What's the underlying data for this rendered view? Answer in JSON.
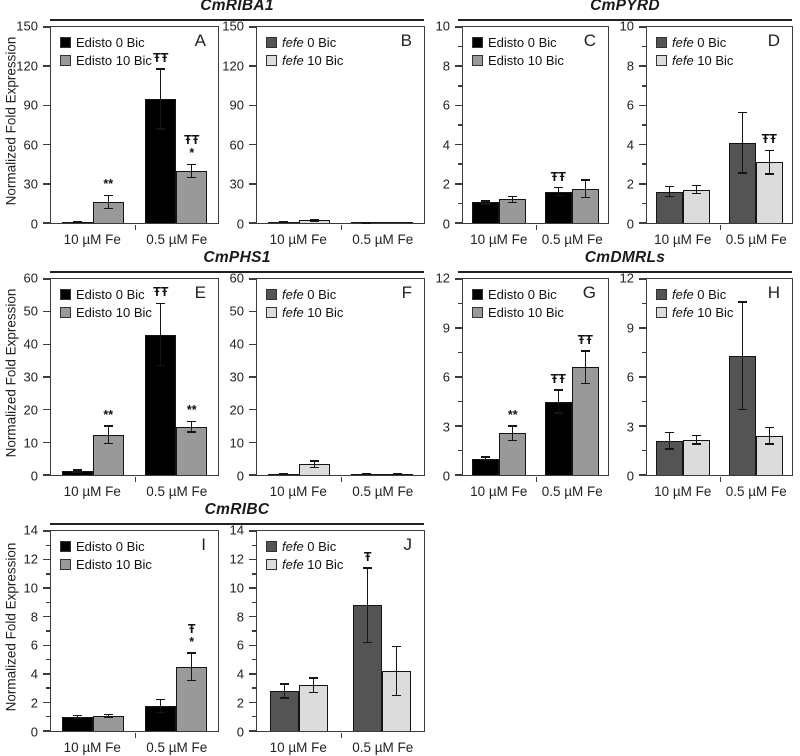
{
  "figure": {
    "ylabel": "Normalized Fold Expression",
    "background": "#ffffff"
  },
  "groups": [
    {
      "title": "CmRIBA1"
    },
    {
      "title": "CmPYRD"
    },
    {
      "title": "CmPHS1"
    },
    {
      "title": "CmDMRLs"
    },
    {
      "title": "CmRIBC"
    }
  ],
  "colors": {
    "edisto_0bic": "#000000",
    "edisto_10bic": "#999999",
    "fefe_0bic": "#545454",
    "fefe_10bic": "#dcdcdc",
    "axis": "#3c3c3c"
  },
  "chart_data": [
    {
      "type": "bar",
      "panel": "A",
      "title": "CmRIBA1",
      "variety": "Edisto",
      "italic_legend": false,
      "categories": [
        "10 µM Fe",
        "0.5 µM Fe"
      ],
      "ylim": [
        0,
        150
      ],
      "yticks": [
        0,
        30,
        60,
        90,
        120,
        150
      ],
      "minor_ticks": false,
      "series": [
        {
          "name": "Edisto 0 Bic",
          "color": "#000000",
          "values": [
            1,
            95
          ],
          "errors": [
            0.3,
            23
          ],
          "annotations": [
            [],
            [
              "ŦŦ"
            ]
          ]
        },
        {
          "name": "Edisto 10 Bic",
          "color": "#999999",
          "values": [
            16,
            40
          ],
          "errors": [
            5,
            5
          ],
          "annotations": [
            [
              "**"
            ],
            [
              "ŦŦ",
              "*"
            ]
          ]
        }
      ]
    },
    {
      "type": "bar",
      "panel": "B",
      "title": "CmRIBA1",
      "variety": "fefe",
      "italic_legend": true,
      "categories": [
        "10 µM Fe",
        "0.5 µM Fe"
      ],
      "ylim": [
        0,
        150
      ],
      "yticks": [
        0,
        30,
        60,
        90,
        120,
        150
      ],
      "minor_ticks": false,
      "series": [
        {
          "name": "fefe 0 Bic",
          "color": "#545454",
          "values": [
            0.7,
            0.2
          ],
          "errors": [
            0.2,
            0.1
          ],
          "annotations": [
            [],
            []
          ]
        },
        {
          "name": "fefe 10 Bic",
          "color": "#dcdcdc",
          "values": [
            2,
            0.3
          ],
          "errors": [
            0.6,
            0.15
          ],
          "annotations": [
            [],
            []
          ]
        }
      ]
    },
    {
      "type": "bar",
      "panel": "C",
      "title": "CmPYRD",
      "variety": "Edisto",
      "italic_legend": false,
      "categories": [
        "10 µM Fe",
        "0.5 µM Fe"
      ],
      "ylim": [
        0,
        10
      ],
      "yticks": [
        0,
        2,
        4,
        6,
        8,
        10
      ],
      "minor_ticks": true,
      "series": [
        {
          "name": "Edisto 0 Bic",
          "color": "#000000",
          "values": [
            1.05,
            1.6
          ],
          "errors": [
            0.08,
            0.2
          ],
          "annotations": [
            [],
            [
              "ŦŦ"
            ]
          ]
        },
        {
          "name": "Edisto 10 Bic",
          "color": "#999999",
          "values": [
            1.2,
            1.75
          ],
          "errors": [
            0.15,
            0.45
          ],
          "annotations": [
            [],
            []
          ]
        }
      ]
    },
    {
      "type": "bar",
      "panel": "D",
      "title": "CmPYRD",
      "variety": "fefe",
      "italic_legend": true,
      "categories": [
        "10 µM Fe",
        "0.5 µM Fe"
      ],
      "ylim": [
        0,
        10
      ],
      "yticks": [
        0,
        2,
        4,
        6,
        8,
        10
      ],
      "minor_ticks": true,
      "series": [
        {
          "name": "fefe 0 Bic",
          "color": "#545454",
          "values": [
            1.6,
            4.1
          ],
          "errors": [
            0.25,
            1.55
          ],
          "annotations": [
            [],
            []
          ]
        },
        {
          "name": "fefe 10 Bic",
          "color": "#dcdcdc",
          "values": [
            1.7,
            3.1
          ],
          "errors": [
            0.2,
            0.6
          ],
          "annotations": [
            [],
            [
              "ŦŦ"
            ]
          ]
        }
      ]
    },
    {
      "type": "bar",
      "panel": "E",
      "title": "CmPHS1",
      "variety": "Edisto",
      "italic_legend": false,
      "categories": [
        "10 µM Fe",
        "0.5 µM Fe"
      ],
      "ylim": [
        0,
        60
      ],
      "yticks": [
        0,
        10,
        20,
        30,
        40,
        50,
        60
      ],
      "minor_ticks": false,
      "series": [
        {
          "name": "Edisto 0 Bic",
          "color": "#000000",
          "values": [
            1.2,
            43
          ],
          "errors": [
            0.3,
            9.5
          ],
          "annotations": [
            [],
            [
              "ŦŦ"
            ]
          ]
        },
        {
          "name": "Edisto 10 Bic",
          "color": "#999999",
          "values": [
            12.3,
            14.8
          ],
          "errors": [
            2.7,
            1.6
          ],
          "annotations": [
            [
              "**"
            ],
            [
              "**"
            ]
          ]
        }
      ]
    },
    {
      "type": "bar",
      "panel": "F",
      "title": "CmPHS1",
      "variety": "fefe",
      "italic_legend": true,
      "categories": [
        "10 µM Fe",
        "0.5 µM Fe"
      ],
      "ylim": [
        0,
        60
      ],
      "yticks": [
        0,
        10,
        20,
        30,
        40,
        50,
        60
      ],
      "minor_ticks": false,
      "series": [
        {
          "name": "fefe 0 Bic",
          "color": "#545454",
          "values": [
            0.3,
            0.2
          ],
          "errors": [
            0.1,
            0.05
          ],
          "annotations": [
            [],
            []
          ]
        },
        {
          "name": "fefe 10 Bic",
          "color": "#dcdcdc",
          "values": [
            3.3,
            0.3
          ],
          "errors": [
            1.0,
            0.1
          ],
          "annotations": [
            [],
            []
          ]
        }
      ]
    },
    {
      "type": "bar",
      "panel": "G",
      "title": "CmDMRLs",
      "variety": "Edisto",
      "italic_legend": false,
      "categories": [
        "10 µM Fe",
        "0.5 µM Fe"
      ],
      "ylim": [
        0,
        12
      ],
      "yticks": [
        0,
        3,
        6,
        9,
        12
      ],
      "minor_ticks": true,
      "series": [
        {
          "name": "Edisto 0 Bic",
          "color": "#000000",
          "values": [
            1.0,
            4.5
          ],
          "errors": [
            0.1,
            0.7
          ],
          "annotations": [
            [],
            [
              "ŦŦ"
            ]
          ]
        },
        {
          "name": "Edisto 10 Bic",
          "color": "#999999",
          "values": [
            2.55,
            6.6
          ],
          "errors": [
            0.45,
            1.0
          ],
          "annotations": [
            [
              "**"
            ],
            [
              "ŦŦ"
            ]
          ]
        }
      ]
    },
    {
      "type": "bar",
      "panel": "H",
      "title": "CmDMRLs",
      "variety": "fefe",
      "italic_legend": true,
      "categories": [
        "10 µM Fe",
        "0.5 µM Fe"
      ],
      "ylim": [
        0,
        12
      ],
      "yticks": [
        0,
        3,
        6,
        9,
        12
      ],
      "minor_ticks": true,
      "series": [
        {
          "name": "fefe 0 Bic",
          "color": "#545454",
          "values": [
            2.1,
            7.3
          ],
          "errors": [
            0.5,
            3.3
          ],
          "annotations": [
            [],
            []
          ]
        },
        {
          "name": "fefe 10 Bic",
          "color": "#dcdcdc",
          "values": [
            2.15,
            2.4
          ],
          "errors": [
            0.25,
            0.5
          ],
          "annotations": [
            [],
            []
          ]
        }
      ]
    },
    {
      "type": "bar",
      "panel": "I",
      "title": "CmRIBC",
      "variety": "Edisto",
      "italic_legend": false,
      "categories": [
        "10 µM Fe",
        "0.5 µM Fe"
      ],
      "ylim": [
        0,
        14
      ],
      "yticks": [
        0,
        2,
        4,
        6,
        8,
        10,
        12,
        14
      ],
      "minor_ticks": true,
      "series": [
        {
          "name": "Edisto 0 Bic",
          "color": "#000000",
          "values": [
            1.0,
            1.75
          ],
          "errors": [
            0.08,
            0.45
          ],
          "annotations": [
            [],
            []
          ]
        },
        {
          "name": "Edisto 10 Bic",
          "color": "#999999",
          "values": [
            1.05,
            4.5
          ],
          "errors": [
            0.12,
            0.95
          ],
          "annotations": [
            [],
            [
              "Ŧ",
              "*"
            ]
          ]
        }
      ]
    },
    {
      "type": "bar",
      "panel": "J",
      "title": "CmRIBC",
      "variety": "fefe",
      "italic_legend": true,
      "categories": [
        "10 µM Fe",
        "0.5 µM Fe"
      ],
      "ylim": [
        0,
        14
      ],
      "yticks": [
        0,
        2,
        4,
        6,
        8,
        10,
        12,
        14
      ],
      "minor_ticks": true,
      "series": [
        {
          "name": "fefe 0 Bic",
          "color": "#545454",
          "values": [
            2.8,
            8.8
          ],
          "errors": [
            0.5,
            2.6
          ],
          "annotations": [
            [],
            [
              "Ŧ"
            ]
          ]
        },
        {
          "name": "fefe 10 Bic",
          "color": "#dcdcdc",
          "values": [
            3.2,
            4.2
          ],
          "errors": [
            0.5,
            1.7
          ],
          "annotations": [
            [],
            []
          ]
        }
      ]
    }
  ]
}
